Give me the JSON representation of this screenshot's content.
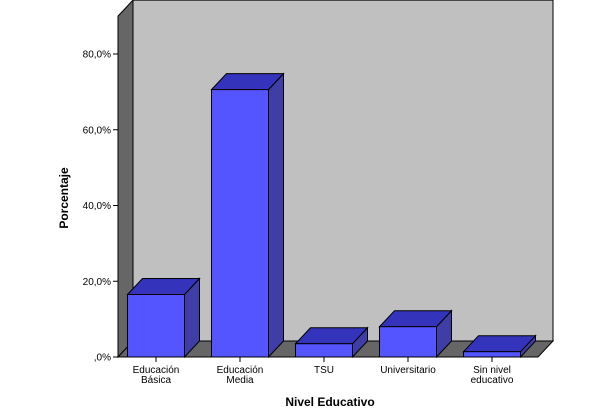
{
  "chart_data": {
    "type": "bar",
    "title": "",
    "xlabel": "Nivel Educativo",
    "ylabel": "Porcentaje",
    "categories": [
      [
        "Educación",
        "Básica"
      ],
      [
        "Educación",
        "Media"
      ],
      [
        "TSU"
      ],
      [
        "Universitario"
      ],
      [
        "Sin nivel",
        "educativo"
      ]
    ],
    "values": [
      16.5,
      70.6,
      3.5,
      8.0,
      1.4
    ],
    "yticks": [
      0,
      20,
      40,
      60,
      80
    ],
    "ytick_labels": [
      ",0%",
      "20,0%",
      "40,0%",
      "60,0%",
      "80,0%"
    ],
    "ylim": [
      0,
      90
    ],
    "grid": false,
    "legend": "none",
    "colors": {
      "bar_front": "#5555ff",
      "bar_top": "#3333bb",
      "bar_side": "#3e3ea6",
      "back_wall": "#c0c0c0",
      "side_wall": "#666666",
      "floor": "#666666"
    }
  }
}
